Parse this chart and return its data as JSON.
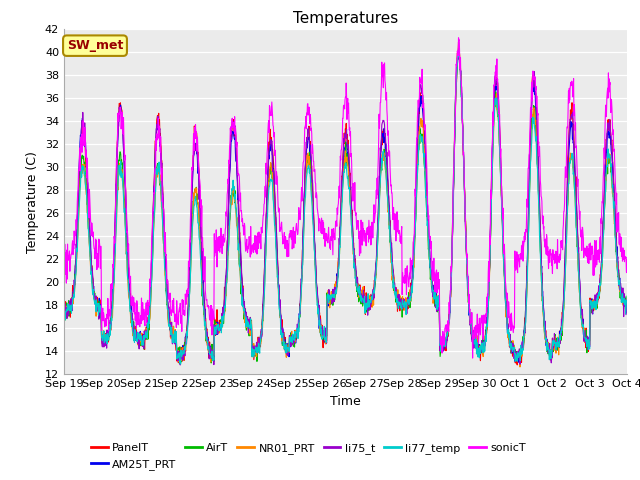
{
  "title": "Temperatures",
  "xlabel": "Time",
  "ylabel": "Temperature (C)",
  "ylim": [
    12,
    42
  ],
  "yticks": [
    12,
    14,
    16,
    18,
    20,
    22,
    24,
    26,
    28,
    30,
    32,
    34,
    36,
    38,
    40,
    42
  ],
  "xtick_labels": [
    "Sep 19",
    "Sep 20",
    "Sep 21",
    "Sep 22",
    "Sep 23",
    "Sep 24",
    "Sep 25",
    "Sep 26",
    "Sep 27",
    "Sep 28",
    "Sep 29",
    "Sep 30",
    "Oct 1",
    "Oct 2",
    "Oct 3",
    "Oct 4"
  ],
  "series": [
    {
      "name": "PanelT",
      "color": "#ff0000"
    },
    {
      "name": "AM25T_PRT",
      "color": "#0000ee"
    },
    {
      "name": "AirT",
      "color": "#00bb00"
    },
    {
      "name": "NR01_PRT",
      "color": "#ff8800"
    },
    {
      "name": "li75_t",
      "color": "#9900cc"
    },
    {
      "name": "li77_temp",
      "color": "#00cccc"
    },
    {
      "name": "sonicT",
      "color": "#ff00ff"
    }
  ],
  "annotation_text": "SW_met",
  "annotation_color": "#990000",
  "annotation_bg": "#ffff99",
  "annotation_border": "#aa8800",
  "plot_bg": "#ebebeb",
  "title_fontsize": 11,
  "tick_fontsize": 8,
  "label_fontsize": 9,
  "legend_fontsize": 8
}
